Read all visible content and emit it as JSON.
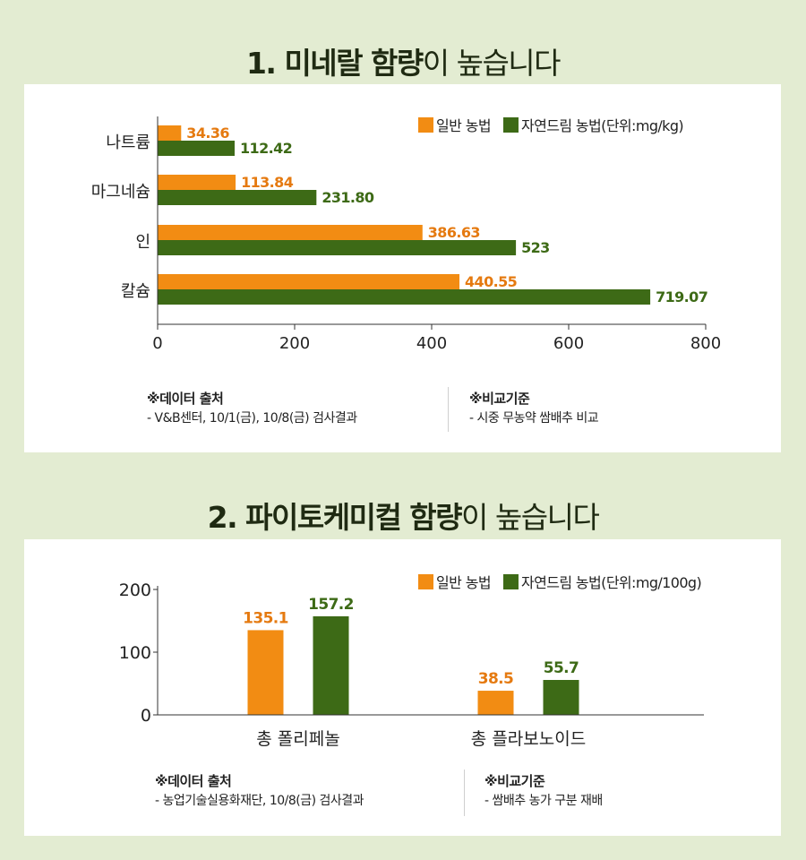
{
  "section1": {
    "title_bold": "1. 미네랄 함량",
    "title_rest": "이 높습니다",
    "legend": [
      "일반 농법",
      "자연드림 농법(단위:mg/kg)"
    ],
    "source": {
      "head": "※데이터 출처",
      "text": "- V&B센터, 10/1(금), 10/8(금) 검사결과"
    },
    "criteria": {
      "head": "※비교기준",
      "text": "- 시중 무농약 쌈배추 비교"
    }
  },
  "section2": {
    "title_bold": "2. 파이토케미컬 함량",
    "title_rest": "이 높습니다",
    "legend": [
      "일반 농법",
      "자연드림 농법(단위:mg/100g)"
    ],
    "source": {
      "head": "※데이터 출처",
      "text": "- 농업기술실용화재단, 10/8(금) 검사결과"
    },
    "criteria": {
      "head": "※비교기준",
      "text": "- 쌈배추 농가 구분 재배"
    }
  },
  "colors": {
    "conventional": "#f28c13",
    "natural": "#3d6a16",
    "background": "#e3ecd2"
  },
  "chart_data": [
    {
      "type": "bar",
      "orientation": "horizontal",
      "categories": [
        "나트륨",
        "마그네슘",
        "인",
        "칼슘"
      ],
      "series": [
        {
          "name": "일반 농법",
          "values": [
            34.36,
            113.84,
            386.63,
            440.55
          ],
          "labels": [
            "34.36",
            "113.84",
            "386.63",
            "440.55"
          ]
        },
        {
          "name": "자연드림 농법",
          "values": [
            112.42,
            231.8,
            523,
            719.07
          ],
          "labels": [
            "112.42",
            "231.80",
            "523",
            "719.07"
          ]
        }
      ],
      "xlim": [
        0,
        800
      ],
      "xticks": [
        "0",
        "200",
        "400",
        "600",
        "800"
      ],
      "legend": "top-right",
      "grid": false
    },
    {
      "type": "bar",
      "orientation": "vertical",
      "categories": [
        "총 폴리페놀",
        "총 플라보노이드"
      ],
      "series": [
        {
          "name": "일반 농법",
          "values": [
            135.1,
            38.5
          ],
          "labels": [
            "135.1",
            "38.5"
          ]
        },
        {
          "name": "자연드림 농법",
          "values": [
            157.2,
            55.7
          ],
          "labels": [
            "157.2",
            "55.7"
          ]
        }
      ],
      "ylim": [
        0,
        200
      ],
      "yticks": [
        "0",
        "100",
        "200"
      ],
      "legend": "top-right",
      "grid": false
    }
  ]
}
